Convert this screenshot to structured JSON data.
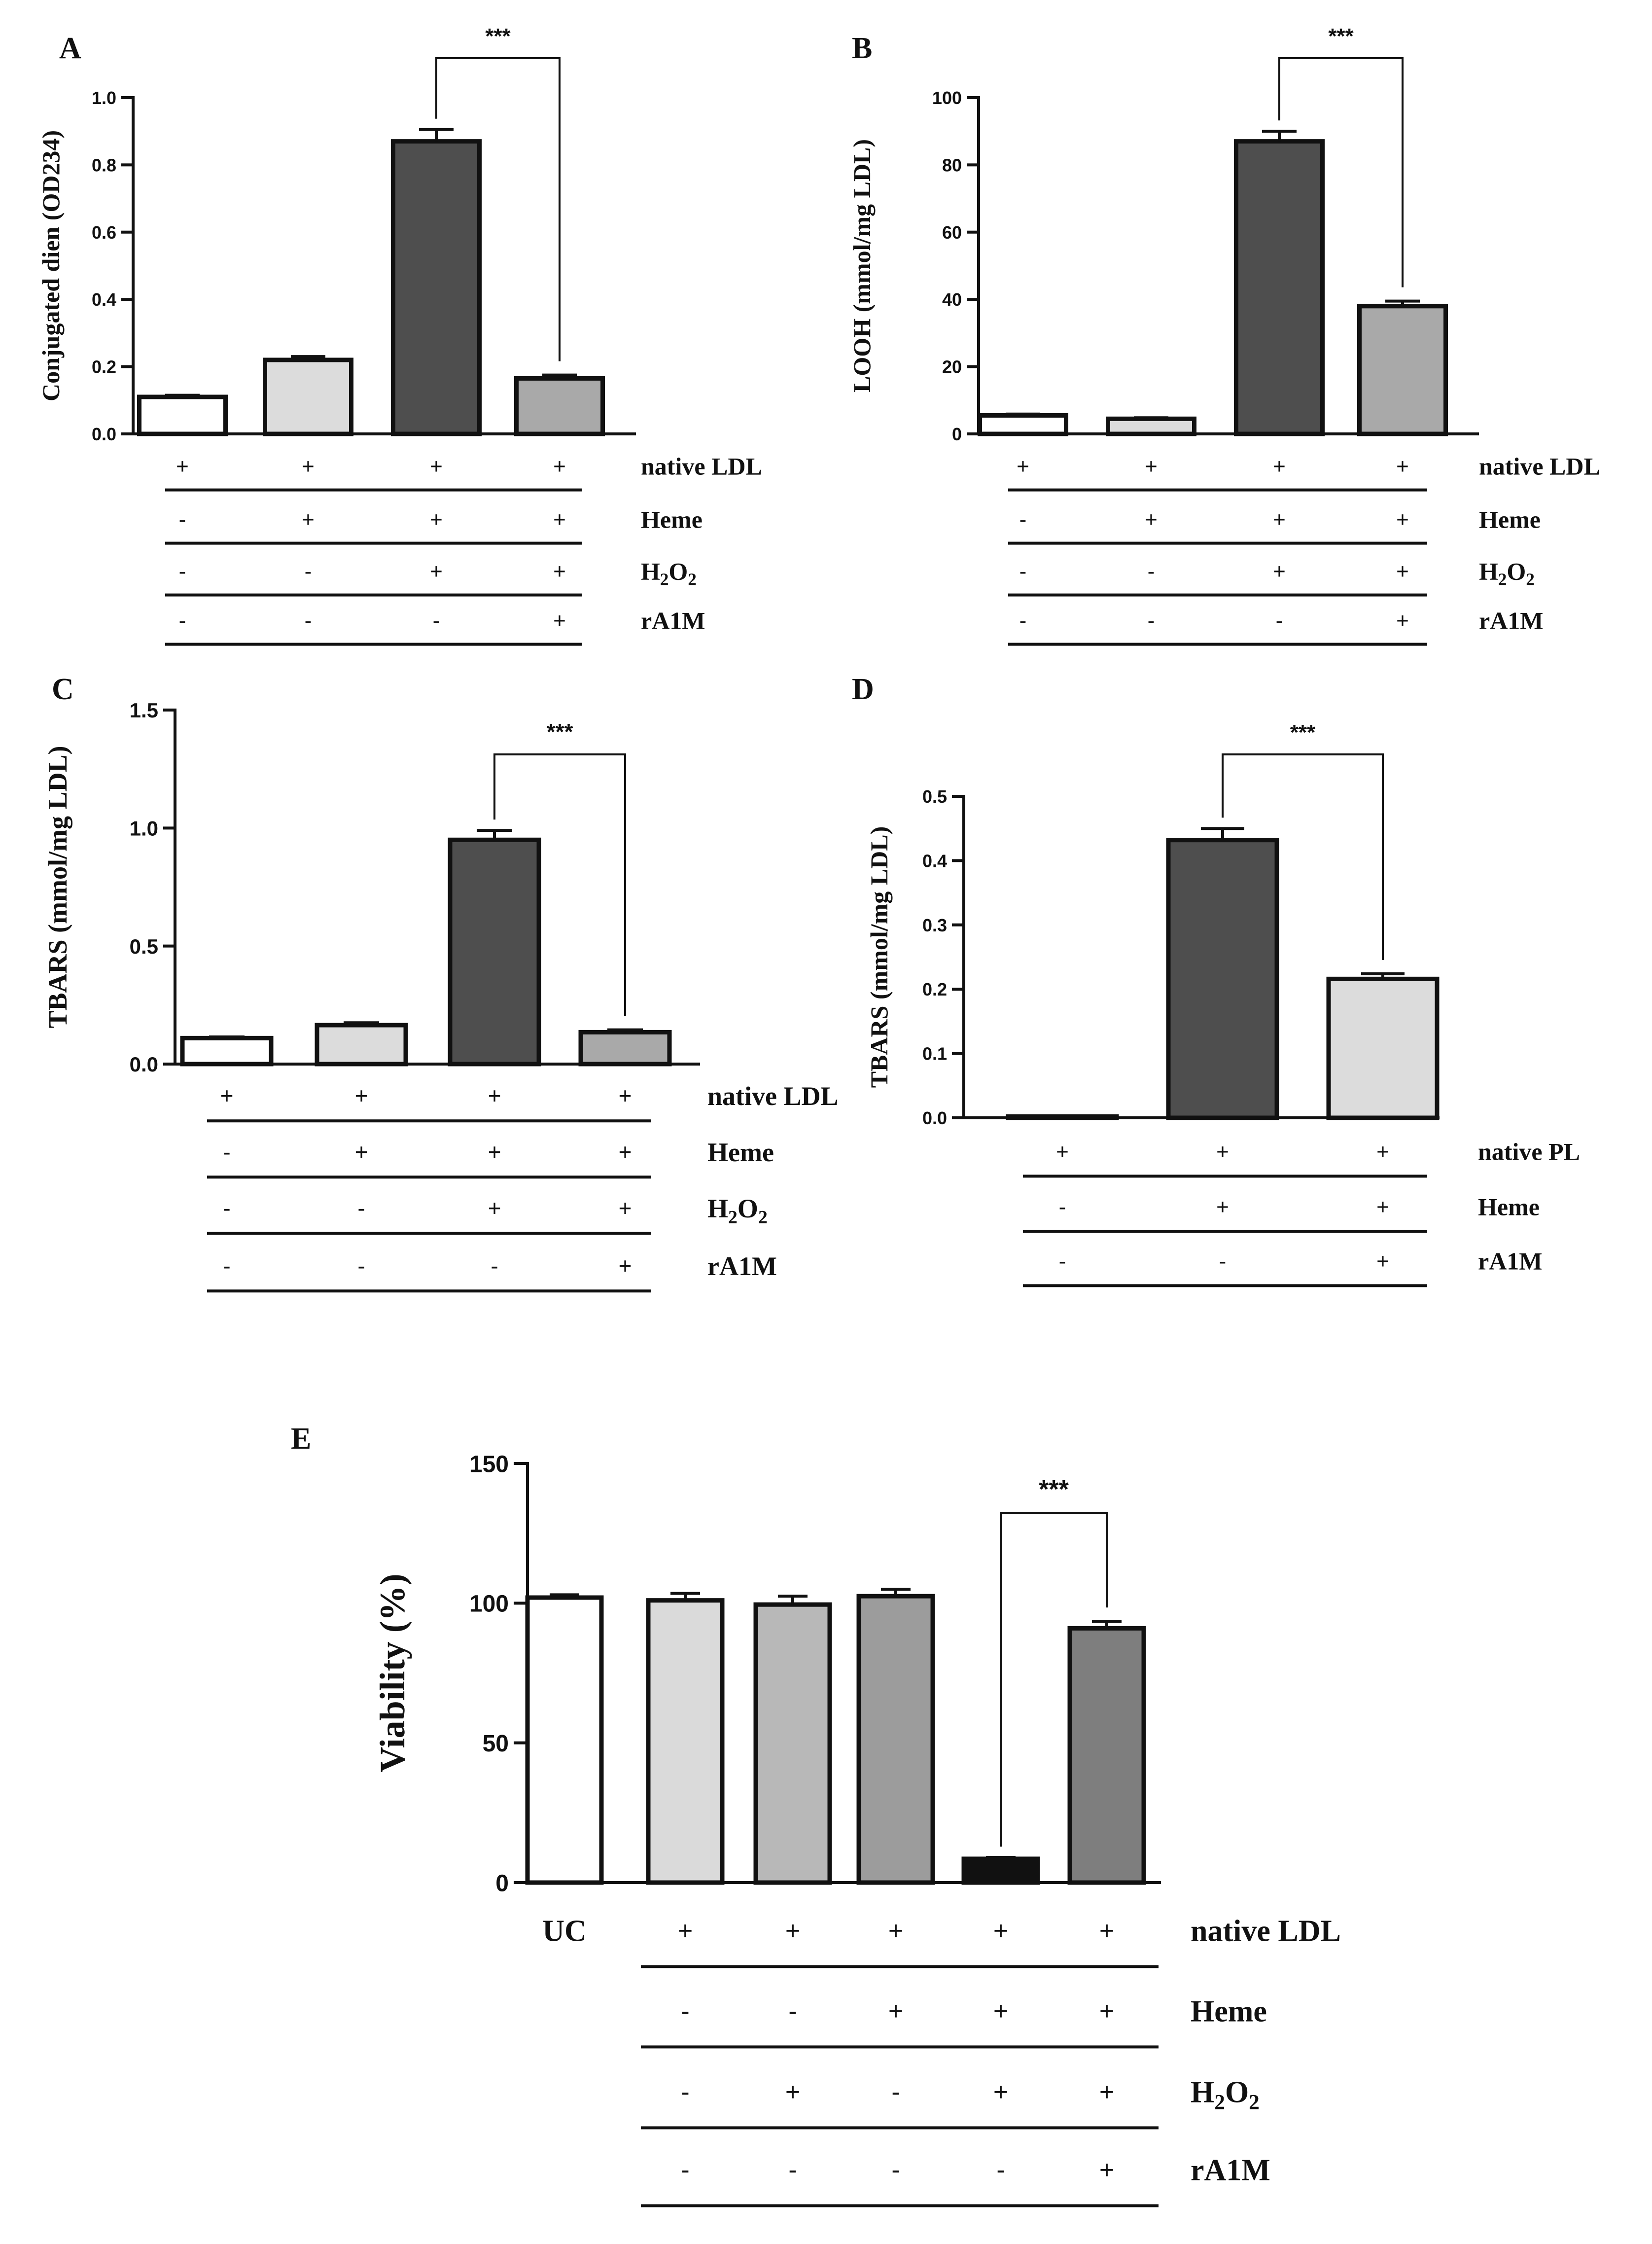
{
  "figure": {
    "background": "#ffffff",
    "bar_stroke": "#111111"
  },
  "chart_data": [
    {
      "panel": "A",
      "type": "bar",
      "ylabel": "Conjugated dien (OD234)",
      "ylim": [
        0,
        1.0
      ],
      "yticks": [
        "0.0",
        "0.2",
        "0.4",
        "0.6",
        "0.8",
        "1.0"
      ],
      "ytick_values": [
        0,
        0.2,
        0.4,
        0.6,
        0.8,
        1.0
      ],
      "values": [
        0.11,
        0.22,
        0.87,
        0.165
      ],
      "errors": [
        0.005,
        0.01,
        0.035,
        0.01
      ],
      "colors": [
        "#ffffff",
        "#dcdcdc",
        "#4e4e4e",
        "#a9a9a9"
      ],
      "conditions": [
        {
          "label": "native LDL",
          "signs": [
            "+",
            "+",
            "+",
            "+"
          ]
        },
        {
          "label": "Heme",
          "signs": [
            "-",
            "+",
            "+",
            "+"
          ]
        },
        {
          "label": "H2O2",
          "signs": [
            "-",
            "-",
            "+",
            "+"
          ]
        },
        {
          "label": "rA1M",
          "signs": [
            "-",
            "-",
            "-",
            "+"
          ]
        }
      ],
      "significance": {
        "from": 2,
        "to": 3,
        "label": "***"
      }
    },
    {
      "panel": "B",
      "type": "bar",
      "ylabel": "LOOH (mmol/mg LDL)",
      "ylim": [
        0,
        100
      ],
      "yticks": [
        "0",
        "20",
        "40",
        "60",
        "80",
        "100"
      ],
      "ytick_values": [
        0,
        20,
        40,
        60,
        80,
        100
      ],
      "values": [
        5.5,
        4.5,
        87,
        38
      ],
      "errors": [
        0.4,
        0.3,
        3.0,
        1.5
      ],
      "colors": [
        "#ffffff",
        "#dcdcdc",
        "#4e4e4e",
        "#a9a9a9"
      ],
      "conditions": [
        {
          "label": "native LDL",
          "signs": [
            "+",
            "+",
            "+",
            "+"
          ]
        },
        {
          "label": "Heme",
          "signs": [
            "-",
            "+",
            "+",
            "+"
          ]
        },
        {
          "label": "H2O2",
          "signs": [
            "-",
            "-",
            "+",
            "+"
          ]
        },
        {
          "label": "rA1M",
          "signs": [
            "-",
            "-",
            "-",
            "+"
          ]
        }
      ],
      "significance": {
        "from": 2,
        "to": 3,
        "label": "***"
      }
    },
    {
      "panel": "C",
      "type": "bar",
      "ylabel": "TBARS (mmol/mg LDL)",
      "ylim": [
        0,
        1.5
      ],
      "yticks": [
        "0.0",
        "0.5",
        "1.0",
        "1.5"
      ],
      "ytick_values": [
        0,
        0.5,
        1.0,
        1.5
      ],
      "values": [
        0.11,
        0.165,
        0.95,
        0.135
      ],
      "errors": [
        0.005,
        0.01,
        0.04,
        0.01
      ],
      "colors": [
        "#ffffff",
        "#dcdcdc",
        "#4e4e4e",
        "#a9a9a9"
      ],
      "conditions": [
        {
          "label": "native LDL",
          "signs": [
            "+",
            "+",
            "+",
            "+"
          ]
        },
        {
          "label": "Heme",
          "signs": [
            "-",
            "+",
            "+",
            "+"
          ]
        },
        {
          "label": "H2O2",
          "signs": [
            "-",
            "-",
            "+",
            "+"
          ]
        },
        {
          "label": "rA1M",
          "signs": [
            "-",
            "-",
            "-",
            "+"
          ]
        }
      ],
      "significance": {
        "from": 2,
        "to": 3,
        "label": "***"
      }
    },
    {
      "panel": "D",
      "type": "bar",
      "ylabel": "TBARS (mmol/mg LDL)",
      "ylim": [
        0,
        0.5
      ],
      "yticks": [
        "0.0",
        "0.1",
        "0.2",
        "0.3",
        "0.4",
        "0.5"
      ],
      "ytick_values": [
        0,
        0.1,
        0.2,
        0.3,
        0.4,
        0.5
      ],
      "values": [
        0.002,
        0.432,
        0.216
      ],
      "errors": [
        0.0,
        0.018,
        0.008
      ],
      "colors": [
        "#ffffff",
        "#4e4e4e",
        "#dcdcdc"
      ],
      "conditions": [
        {
          "label": "native PL",
          "signs": [
            "+",
            "+",
            "+"
          ]
        },
        {
          "label": "Heme",
          "signs": [
            "-",
            "+",
            "+"
          ]
        },
        {
          "label": "rA1M",
          "signs": [
            "-",
            "-",
            "+"
          ]
        }
      ],
      "significance": {
        "from": 1,
        "to": 2,
        "label": "***"
      }
    },
    {
      "panel": "E",
      "type": "bar",
      "ylabel": "Viability (%)",
      "ylim": [
        0,
        150
      ],
      "yticks": [
        "0",
        "50",
        "100",
        "150"
      ],
      "ytick_values": [
        0,
        50,
        100,
        150
      ],
      "values": [
        102,
        101,
        99.5,
        102.5,
        8.5,
        91
      ],
      "errors": [
        1.0,
        2.5,
        3.0,
        2.5,
        0.5,
        2.5
      ],
      "colors": [
        "#ffffff",
        "#dadada",
        "#b8b8b8",
        "#9c9c9c",
        "#111111",
        "#7e7e7e"
      ],
      "first_label": "UC",
      "conditions": [
        {
          "label": "native LDL",
          "signs": [
            "",
            "+",
            "+",
            "+",
            "+",
            "+"
          ]
        },
        {
          "label": "Heme",
          "signs": [
            "",
            "-",
            "-",
            "+",
            "+",
            "+"
          ]
        },
        {
          "label": "H2O2",
          "signs": [
            "",
            "-",
            "+",
            "-",
            "+",
            "+"
          ]
        },
        {
          "label": "rA1M",
          "signs": [
            "",
            "-",
            "-",
            "-",
            "-",
            "+"
          ]
        }
      ],
      "significance": {
        "from": 4,
        "to": 5,
        "label": "***"
      }
    }
  ]
}
